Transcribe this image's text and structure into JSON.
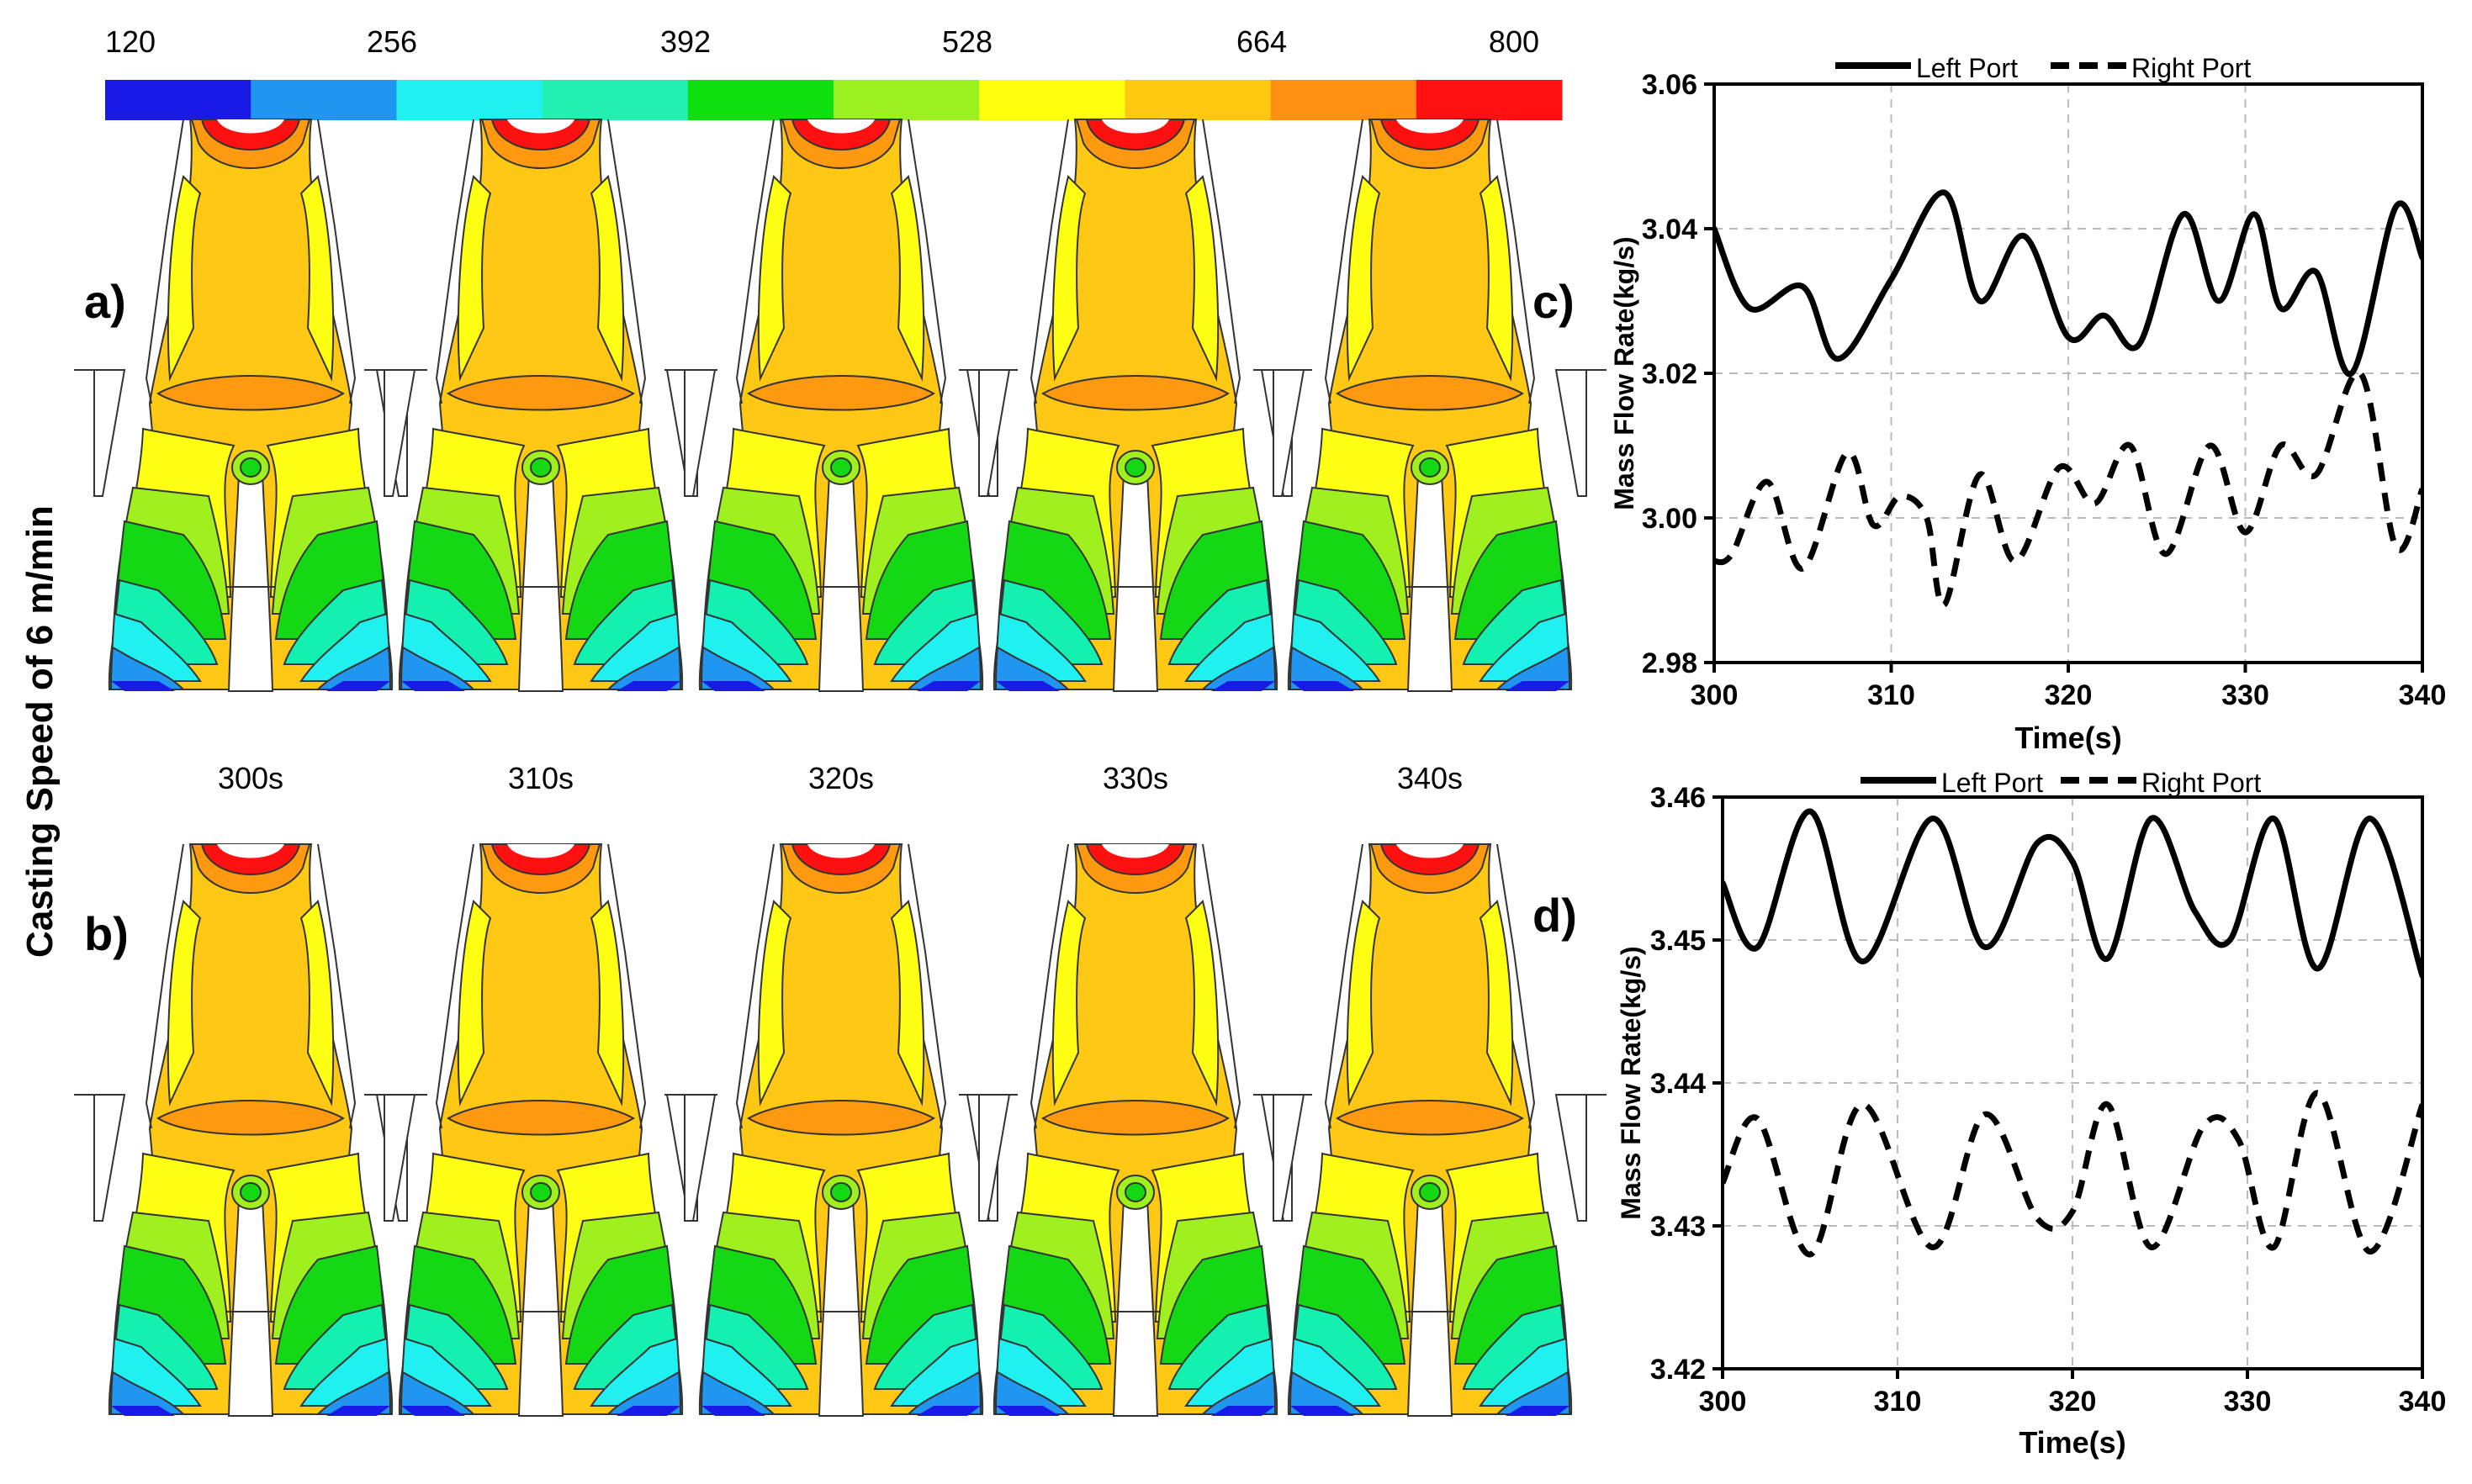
{
  "figure": {
    "side_label": "Casting Speed of 6 m/min",
    "panel_labels": [
      "a)",
      "b)",
      "c)",
      "d)"
    ],
    "time_labels": [
      "300s",
      "310s",
      "320s",
      "330s",
      "340s"
    ]
  },
  "colorbar": {
    "tick_labels": [
      "120",
      "256",
      "392",
      "528",
      "664",
      "800"
    ],
    "colors": [
      "#1a1ae6",
      "#2196f0",
      "#21f0f0",
      "#21f0b0",
      "#10e010",
      "#9cf020",
      "#ffff10",
      "#ffc810",
      "#ff9010",
      "#ff1010"
    ]
  },
  "contour_colors": {
    "red": "#ff1010",
    "orange": "#ff9a10",
    "amber": "#ffc814",
    "yellow": "#ffff14",
    "lime": "#a0f020",
    "green": "#14d814",
    "teal": "#14f0b0",
    "cyan": "#20f0f0",
    "sky": "#2196f0",
    "blue": "#1a1ae6"
  },
  "chart_data": [
    {
      "type": "line",
      "panel": "c)",
      "xlabel": "Time(s)",
      "ylabel": "Mass Flow Rate(kg/s)",
      "xlim": [
        300,
        340
      ],
      "ylim": [
        2.98,
        3.06
      ],
      "xticks": [
        "300",
        "310",
        "320",
        "330",
        "340"
      ],
      "yticks": [
        "2.98",
        "3.00",
        "3.02",
        "3.04",
        "3.06"
      ],
      "legend": {
        "position": "top",
        "entries": [
          "Left Port",
          "Right Port"
        ]
      },
      "grid": true,
      "series": [
        {
          "name": "Left Port",
          "style": "solid",
          "x": [
            300,
            302,
            305,
            307,
            310,
            313,
            315,
            317.5,
            320,
            322,
            324,
            326.5,
            328.5,
            330.5,
            332,
            334,
            336,
            338.5,
            340
          ],
          "y": [
            3.04,
            3.029,
            3.032,
            3.022,
            3.033,
            3.045,
            3.03,
            3.039,
            3.025,
            3.028,
            3.024,
            3.042,
            3.03,
            3.042,
            3.029,
            3.034,
            3.02,
            3.043,
            3.036
          ]
        },
        {
          "name": "Right Port",
          "style": "dashed",
          "x": [
            300,
            301,
            303,
            305,
            307.5,
            309,
            310.5,
            312,
            313,
            315,
            317,
            319.5,
            321.5,
            323.5,
            325.5,
            328,
            330,
            332,
            334,
            336.5,
            338.5,
            340
          ],
          "y": [
            2.994,
            2.995,
            3.005,
            2.993,
            3.009,
            2.999,
            3.003,
            3.0,
            2.988,
            3.006,
            2.994,
            3.007,
            3.002,
            3.01,
            2.995,
            3.01,
            2.998,
            3.01,
            3.006,
            3.02,
            2.996,
            3.004
          ]
        }
      ]
    },
    {
      "type": "line",
      "panel": "d)",
      "xlabel": "Time(s)",
      "ylabel": "Mass Flow Rate(kg/s)",
      "xlim": [
        300,
        340
      ],
      "ylim": [
        3.42,
        3.46
      ],
      "xticks": [
        "300",
        "310",
        "320",
        "330",
        "340"
      ],
      "yticks": [
        "3.42",
        "3.43",
        "3.44",
        "3.45",
        "3.46"
      ],
      "legend": {
        "position": "top",
        "entries": [
          "Left Port",
          "Right Port"
        ]
      },
      "grid": true,
      "series": [
        {
          "name": "Left Port",
          "style": "solid",
          "x": [
            300,
            302,
            305,
            308,
            312,
            315,
            318,
            320,
            322,
            324.5,
            327,
            329,
            331.5,
            334,
            337,
            340
          ],
          "y": [
            3.454,
            3.4495,
            3.459,
            3.4485,
            3.4585,
            3.4495,
            3.4568,
            3.4555,
            3.4487,
            3.4585,
            3.452,
            3.45,
            3.4585,
            3.448,
            3.4585,
            3.4475
          ]
        },
        {
          "name": "Right Port",
          "style": "dashed",
          "x": [
            300,
            302,
            305,
            308,
            312,
            315,
            318,
            320,
            322,
            324.5,
            327.5,
            329.5,
            331.5,
            334,
            337,
            340
          ],
          "y": [
            3.433,
            3.4375,
            3.428,
            3.4385,
            3.4285,
            3.4378,
            3.4305,
            3.431,
            3.4385,
            3.4285,
            3.437,
            3.436,
            3.4285,
            3.4393,
            3.4282,
            3.4385
          ]
        }
      ]
    }
  ]
}
